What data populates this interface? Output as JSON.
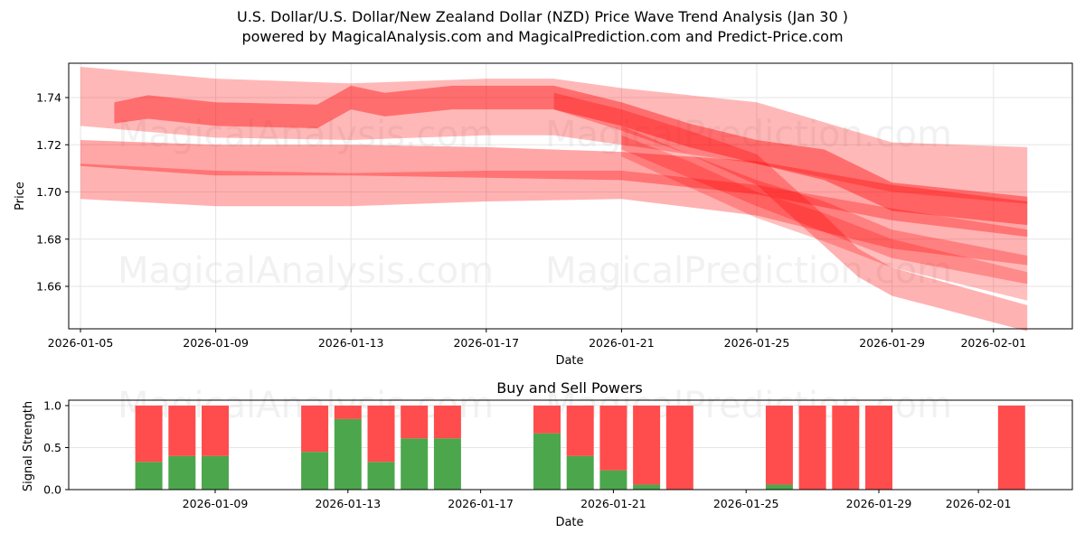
{
  "header": {
    "title": "U.S. Dollar/U.S. Dollar/New Zealand Dollar (NZD) Price Wave Trend Analysis (Jan 30 )",
    "subtitle": "powered by MagicalAnalysis.com and MagicalPrediction.com and Predict-Price.com"
  },
  "watermarks": [
    "MagicalAnalysis.com",
    "MagicalPrediction.com"
  ],
  "colors": {
    "wave": "#ff0000",
    "buy": "#4ca64c",
    "sell": "#ff4c4c",
    "grid": "#e5e5e5"
  },
  "chart_data": [
    {
      "type": "area",
      "title": "",
      "xlabel": "Date",
      "ylabel": "Price",
      "ylim": [
        1.643,
        1.754
      ],
      "grid": true,
      "x_ticks": [
        "2026-01-05",
        "2026-01-09",
        "2026-01-13",
        "2026-01-17",
        "2026-01-21",
        "2026-01-25",
        "2026-01-29",
        "2026-02-01"
      ],
      "y_ticks": [
        "1.66",
        "1.68",
        "1.70",
        "1.72",
        "1.74"
      ],
      "description": "Overlapping semi-transparent red prediction wave bands; roughly flat near 1.70-1.745 from Jan 5 to Jan 20, then declining to 1.645-1.72 by Feb 2",
      "series": [
        {
          "name": "band-outer-upper",
          "x": [
            "2026-01-05",
            "2026-01-09",
            "2026-01-13",
            "2026-01-17",
            "2026-01-19",
            "2026-01-21",
            "2026-01-25",
            "2026-01-29",
            "2026-02-02"
          ],
          "upper": [
            1.753,
            1.748,
            1.746,
            1.748,
            1.748,
            1.744,
            1.738,
            1.721,
            1.719
          ],
          "lower": [
            1.728,
            1.723,
            1.722,
            1.724,
            1.724,
            1.72,
            1.712,
            1.7,
            1.695
          ]
        },
        {
          "name": "band-outer-lower",
          "x": [
            "2026-01-05",
            "2026-01-09",
            "2026-01-13",
            "2026-01-17",
            "2026-01-21",
            "2026-01-25",
            "2026-01-29",
            "2026-02-02"
          ],
          "upper": [
            1.712,
            1.709,
            1.708,
            1.709,
            1.709,
            1.703,
            1.693,
            1.684
          ],
          "lower": [
            1.697,
            1.694,
            1.694,
            1.696,
            1.697,
            1.69,
            1.676,
            1.669
          ]
        },
        {
          "name": "band-mid",
          "x": [
            "2026-01-05",
            "2026-01-09",
            "2026-01-13",
            "2026-01-17",
            "2026-01-21",
            "2026-01-25",
            "2026-01-29",
            "2026-02-02"
          ],
          "upper": [
            1.722,
            1.72,
            1.72,
            1.719,
            1.717,
            1.713,
            1.703,
            1.696
          ],
          "lower": [
            1.711,
            1.707,
            1.707,
            1.706,
            1.705,
            1.699,
            1.688,
            1.681
          ]
        },
        {
          "name": "band-core",
          "x": [
            "2026-01-06",
            "2026-01-07",
            "2026-01-09",
            "2026-01-12",
            "2026-01-13",
            "2026-01-14",
            "2026-01-16",
            "2026-01-19",
            "2026-01-21",
            "2026-01-23",
            "2026-01-25",
            "2026-01-27",
            "2026-01-29",
            "2026-02-02"
          ],
          "upper": [
            1.738,
            1.741,
            1.738,
            1.737,
            1.745,
            1.742,
            1.745,
            1.745,
            1.738,
            1.729,
            1.722,
            1.718,
            1.704,
            1.698
          ],
          "lower": [
            1.729,
            1.731,
            1.728,
            1.727,
            1.735,
            1.732,
            1.735,
            1.735,
            1.728,
            1.719,
            1.712,
            1.705,
            1.692,
            1.686
          ]
        },
        {
          "name": "band-drop-1",
          "x": [
            "2026-01-19",
            "2026-01-21",
            "2026-01-23",
            "2026-01-25",
            "2026-01-26",
            "2026-01-27",
            "2026-01-28",
            "2026-01-29",
            "2026-02-02"
          ],
          "upper": [
            1.742,
            1.735,
            1.726,
            1.716,
            1.703,
            1.69,
            1.676,
            1.668,
            1.652
          ],
          "lower": [
            1.735,
            1.726,
            1.716,
            1.703,
            1.69,
            1.677,
            1.664,
            1.656,
            1.641
          ]
        },
        {
          "name": "band-drop-2",
          "x": [
            "2026-01-21",
            "2026-01-23",
            "2026-01-25",
            "2026-01-27",
            "2026-01-29",
            "2026-02-02"
          ],
          "upper": [
            1.728,
            1.716,
            1.705,
            1.696,
            1.684,
            1.673
          ],
          "lower": [
            1.718,
            1.706,
            1.694,
            1.683,
            1.672,
            1.661
          ]
        },
        {
          "name": "band-drop-3",
          "x": [
            "2026-01-21",
            "2026-01-23",
            "2026-01-25",
            "2026-01-27",
            "2026-01-29",
            "2026-02-02"
          ],
          "upper": [
            1.724,
            1.713,
            1.7,
            1.691,
            1.68,
            1.666
          ],
          "lower": [
            1.715,
            1.702,
            1.689,
            1.679,
            1.668,
            1.654
          ]
        }
      ]
    },
    {
      "type": "bar",
      "stacked": true,
      "title": "Buy and Sell Powers",
      "xlabel": "Date",
      "ylabel": "Signal Strength",
      "ylim": [
        0,
        1.05
      ],
      "grid": true,
      "x_ticks": [
        "2026-01-09",
        "2026-01-13",
        "2026-01-17",
        "2026-01-21",
        "2026-01-25",
        "2026-01-29",
        "2026-02-01"
      ],
      "y_ticks": [
        "0.0",
        "0.5",
        "1.0"
      ],
      "categories": [
        "2026-01-07",
        "2026-01-08",
        "2026-01-09",
        "2026-01-12",
        "2026-01-13",
        "2026-01-14",
        "2026-01-15",
        "2026-01-16",
        "2026-01-19",
        "2026-01-20",
        "2026-01-21",
        "2026-01-22",
        "2026-01-23",
        "2026-01-26",
        "2026-01-27",
        "2026-01-28",
        "2026-01-29",
        "2026-02-02"
      ],
      "series": [
        {
          "name": "Buy",
          "color": "#4ca64c",
          "values": [
            0.33,
            0.4,
            0.4,
            0.45,
            0.84,
            0.33,
            0.61,
            0.61,
            0.67,
            0.4,
            0.23,
            0.06,
            0.0,
            0.06,
            0.0,
            0.0,
            0.0,
            0.0
          ]
        },
        {
          "name": "Sell",
          "color": "#ff4c4c",
          "values": [
            0.67,
            0.6,
            0.6,
            0.55,
            0.16,
            0.67,
            0.39,
            0.39,
            0.33,
            0.6,
            0.77,
            0.94,
            1.0,
            0.94,
            1.0,
            1.0,
            1.0,
            1.0
          ]
        }
      ]
    }
  ]
}
